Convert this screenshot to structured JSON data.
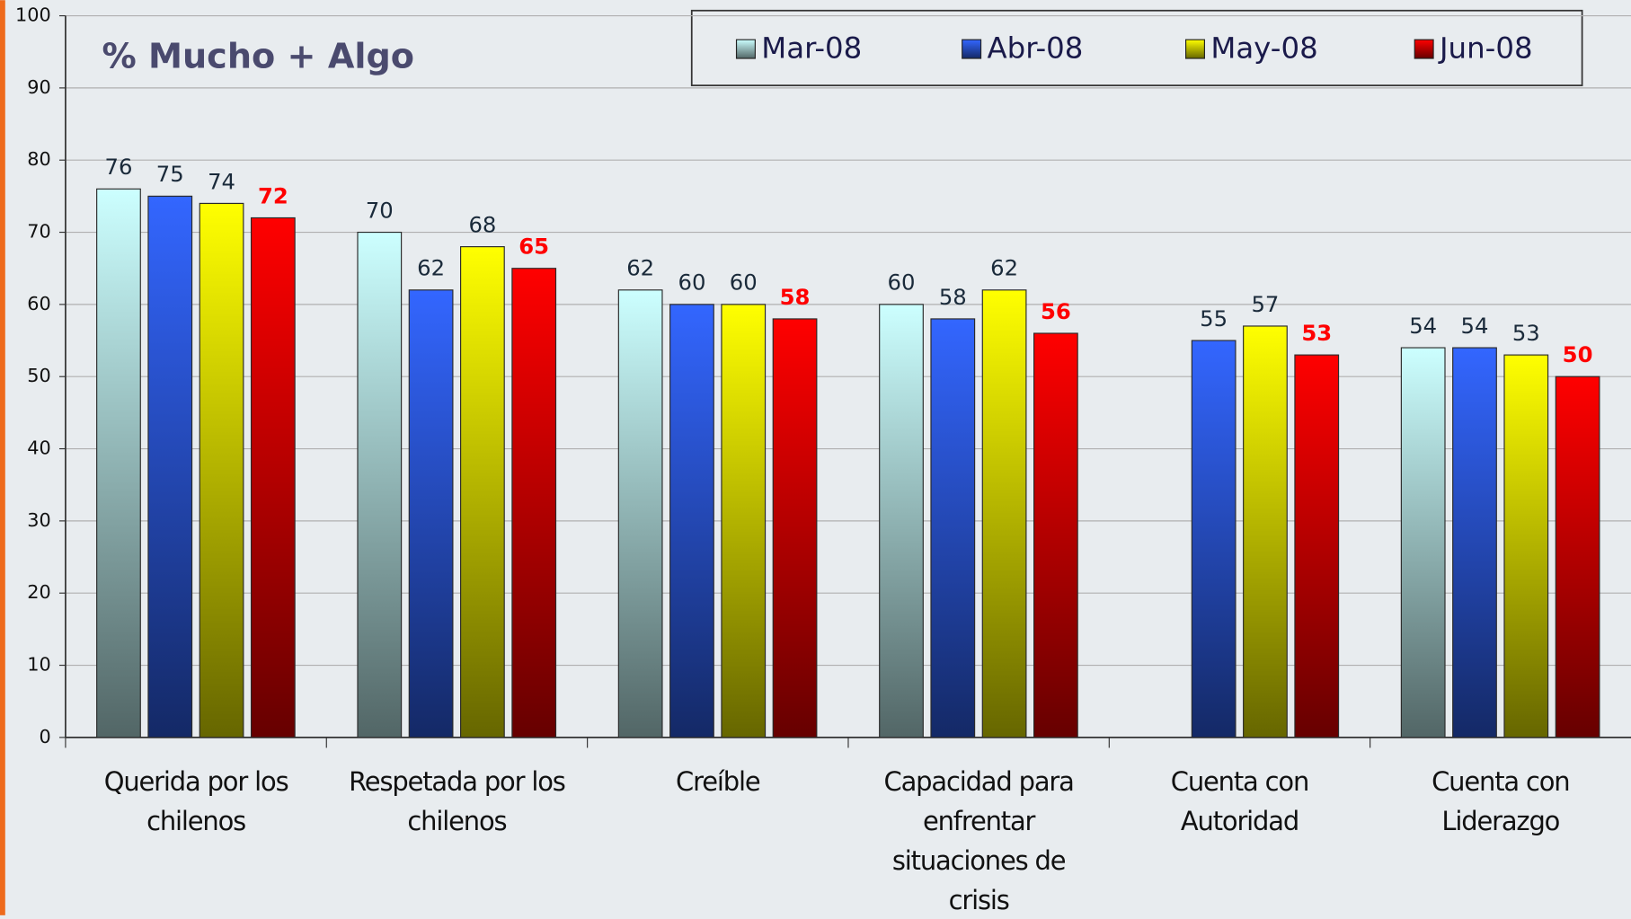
{
  "chart_data": {
    "type": "bar",
    "title": "% Mucho + Algo",
    "categories": [
      "Querida por los chilenos",
      "Respetada por los chilenos",
      "Creíble",
      "Capacidad para enfrentar situaciones de crisis",
      "Cuenta con Autoridad",
      "Cuenta con Liderazgo"
    ],
    "series": [
      {
        "name": "Mar-08",
        "color": "#ccffff",
        "values": [
          76,
          70,
          62,
          60,
          null,
          54
        ]
      },
      {
        "name": "Abr-08",
        "color": "#3366ff",
        "values": [
          75,
          62,
          60,
          58,
          55,
          54
        ]
      },
      {
        "name": "May-08",
        "color": "#ffff00",
        "values": [
          74,
          68,
          60,
          62,
          57,
          53
        ]
      },
      {
        "name": "Jun-08",
        "color": "#ff0000",
        "values": [
          72,
          65,
          58,
          56,
          53,
          50
        ],
        "label_color": "#ff0000",
        "label_bold": true
      }
    ],
    "ylim": [
      0,
      100
    ],
    "yticks": [
      0,
      10,
      20,
      30,
      40,
      50,
      60,
      70,
      80,
      90,
      100
    ],
    "grid": true,
    "legend": "top"
  }
}
